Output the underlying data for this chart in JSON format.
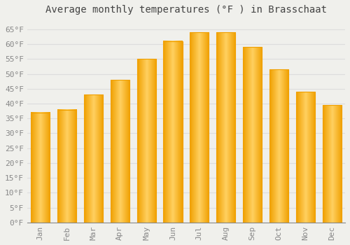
{
  "title": "Average monthly temperatures (°F ) in Brasschaat",
  "months": [
    "Jan",
    "Feb",
    "Mar",
    "Apr",
    "May",
    "Jun",
    "Jul",
    "Aug",
    "Sep",
    "Oct",
    "Nov",
    "Dec"
  ],
  "values": [
    37,
    38,
    43,
    48,
    55,
    61,
    64,
    64,
    59,
    51.5,
    44,
    39.5
  ],
  "bar_color_center": "#FFD060",
  "bar_color_edge": "#F0A000",
  "background_color": "#F0F0EC",
  "grid_color": "#DDDDDD",
  "ylim": [
    0,
    68
  ],
  "yticks": [
    0,
    5,
    10,
    15,
    20,
    25,
    30,
    35,
    40,
    45,
    50,
    55,
    60,
    65
  ],
  "ytick_labels": [
    "0°F",
    "5°F",
    "10°F",
    "15°F",
    "20°F",
    "25°F",
    "30°F",
    "35°F",
    "40°F",
    "45°F",
    "50°F",
    "55°F",
    "60°F",
    "65°F"
  ],
  "title_fontsize": 10,
  "tick_fontsize": 8,
  "tick_color": "#888888",
  "title_color": "#444444"
}
